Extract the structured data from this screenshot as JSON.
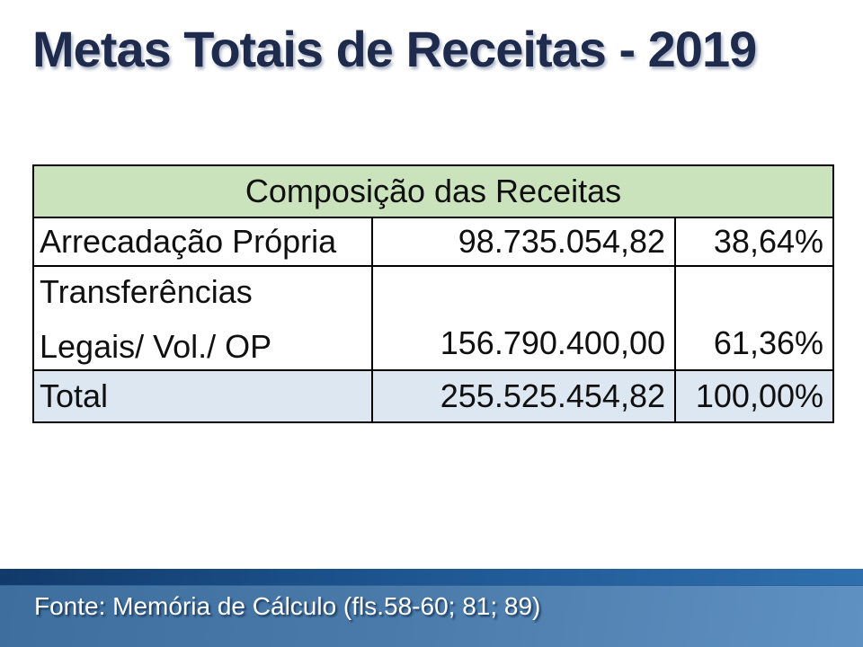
{
  "title": "Metas Totais de Receitas - 2019",
  "table": {
    "header": "Composição das Receitas",
    "rows": [
      {
        "label": "Arrecadação Própria",
        "value": "98.735.054,82",
        "percent": "38,64%"
      },
      {
        "label_line1": "Transferências",
        "label_line2": "Legais/ Vol./ OP",
        "value": "156.790.400,00",
        "percent": "61,36%"
      },
      {
        "label": "Total",
        "value": "255.525.454,82",
        "percent": "100,00%"
      }
    ]
  },
  "footer": {
    "text": "Fonte: Memória de Cálculo (fls.58-60; 81; 89)"
  },
  "colors": {
    "title_navy": "#1e2b4d",
    "header_green": "#cbe3bd",
    "total_row_blue": "#dce7f2",
    "border_black": "#000000",
    "band_strip_dark": "#113a6a",
    "band_strip_light": "#2f6fad",
    "band_body_dark": "#3e6e9d",
    "band_body_light": "#5f91c3",
    "footer_text_white": "#ffffff"
  }
}
